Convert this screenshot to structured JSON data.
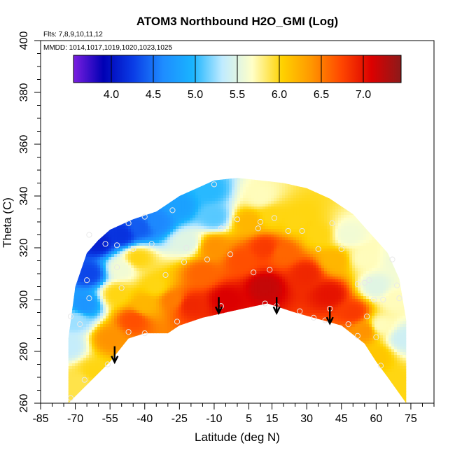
{
  "chart_data": {
    "type": "heatmap",
    "title": "ATOM3 Northbound H2O_GMI (Log)",
    "subtitle_flights": "Flts: 7,8,9,10,11,12",
    "subtitle_dates": "MMDD: 1014,1017,1019,1020,1023,1025",
    "xlabel": "Latitude (deg N)",
    "ylabel": "Theta (C)",
    "xlim": [
      -85,
      85
    ],
    "ylim": [
      260,
      400
    ],
    "x_ticks": [
      -85,
      -70,
      -55,
      -40,
      -25,
      -10,
      5,
      15,
      30,
      45,
      60,
      75
    ],
    "y_ticks": [
      260,
      280,
      300,
      320,
      340,
      360,
      380,
      400
    ],
    "colorbar": {
      "range": [
        3.55,
        7.45
      ],
      "ticks": [
        "4.0",
        "4.5",
        "5.0",
        "5.5",
        "6.0",
        "6.5",
        "7.0"
      ],
      "colors": [
        "#7b1fe0",
        "#0000b4",
        "#0a3ce6",
        "#1e8cff",
        "#19b4ff",
        "#c0ebff",
        "#ffffc8",
        "#ffd200",
        "#ff9600",
        "#ff4600",
        "#dc0000",
        "#8c1a1a"
      ]
    },
    "upper_boundary": [
      [
        -73,
        285
      ],
      [
        -70,
        305
      ],
      [
        -65,
        318
      ],
      [
        -60,
        323
      ],
      [
        -55,
        327
      ],
      [
        -45,
        331
      ],
      [
        -35,
        334
      ],
      [
        -25,
        340
      ],
      [
        -15,
        344
      ],
      [
        -10,
        346
      ],
      [
        0,
        347
      ],
      [
        10,
        346
      ],
      [
        20,
        345
      ],
      [
        30,
        343
      ],
      [
        40,
        339
      ],
      [
        50,
        333
      ],
      [
        55,
        328
      ],
      [
        60,
        323
      ],
      [
        65,
        318
      ],
      [
        70,
        308
      ],
      [
        73,
        292
      ]
    ],
    "lower_boundary": [
      [
        -73,
        260
      ],
      [
        -55,
        276
      ],
      [
        -47,
        285
      ],
      [
        -40,
        287
      ],
      [
        -30,
        287
      ],
      [
        -25,
        290
      ],
      [
        -15,
        293
      ],
      [
        0,
        296
      ],
      [
        13,
        298.5
      ],
      [
        25,
        295
      ],
      [
        45,
        290
      ],
      [
        55,
        283
      ],
      [
        60,
        276
      ],
      [
        65,
        270
      ],
      [
        73,
        260
      ]
    ],
    "field_zones": [
      {
        "x": -73,
        "y": 282,
        "r": 10,
        "value": 5.35
      },
      {
        "x": -70,
        "y": 292,
        "r": 10,
        "value": 5.25
      },
      {
        "x": -66,
        "y": 298,
        "r": 10,
        "value": 4.7
      },
      {
        "x": -64,
        "y": 310,
        "r": 10,
        "value": 4.3
      },
      {
        "x": -60,
        "y": 322,
        "r": 10,
        "value": 4.1
      },
      {
        "x": -50,
        "y": 325,
        "r": 10,
        "value": 4.2
      },
      {
        "x": -42,
        "y": 328,
        "r": 10,
        "value": 4.4
      },
      {
        "x": -35,
        "y": 330,
        "r": 10,
        "value": 4.6
      },
      {
        "x": -25,
        "y": 336,
        "r": 10,
        "value": 4.8
      },
      {
        "x": -12,
        "y": 342,
        "r": 10,
        "value": 5.0
      },
      {
        "x": -10,
        "y": 332,
        "r": 10,
        "value": 5.1
      },
      {
        "x": -22,
        "y": 322,
        "r": 10,
        "value": 5.5
      },
      {
        "x": -50,
        "y": 312,
        "r": 10,
        "value": 5.6
      },
      {
        "x": -43,
        "y": 316,
        "r": 10,
        "value": 6.0
      },
      {
        "x": -52,
        "y": 302,
        "r": 10,
        "value": 6.0
      },
      {
        "x": -55,
        "y": 285,
        "r": 10,
        "value": 6.4
      },
      {
        "x": -62,
        "y": 272,
        "r": 10,
        "value": 6.0
      },
      {
        "x": -68,
        "y": 268,
        "r": 10,
        "value": 5.9
      },
      {
        "x": -45,
        "y": 292,
        "r": 10,
        "value": 6.7
      },
      {
        "x": -40,
        "y": 298,
        "r": 10,
        "value": 6.2
      },
      {
        "x": -35,
        "y": 305,
        "r": 10,
        "value": 6.0
      },
      {
        "x": -28,
        "y": 300,
        "r": 10,
        "value": 6.5
      },
      {
        "x": -20,
        "y": 298,
        "r": 10,
        "value": 6.9
      },
      {
        "x": -15,
        "y": 310,
        "r": 10,
        "value": 6.6
      },
      {
        "x": -10,
        "y": 320,
        "r": 10,
        "value": 6.4
      },
      {
        "x": -5,
        "y": 300,
        "r": 10,
        "value": 7.1
      },
      {
        "x": 2,
        "y": 315,
        "r": 10,
        "value": 6.7
      },
      {
        "x": 5,
        "y": 330,
        "r": 10,
        "value": 6.2
      },
      {
        "x": 10,
        "y": 340,
        "r": 10,
        "value": 5.7
      },
      {
        "x": 15,
        "y": 332,
        "r": 10,
        "value": 6.0
      },
      {
        "x": 12,
        "y": 320,
        "r": 10,
        "value": 6.8
      },
      {
        "x": 12,
        "y": 305,
        "r": 10,
        "value": 7.2
      },
      {
        "x": 20,
        "y": 318,
        "r": 10,
        "value": 6.6
      },
      {
        "x": 25,
        "y": 330,
        "r": 10,
        "value": 6.0
      },
      {
        "x": 35,
        "y": 325,
        "r": 10,
        "value": 6.0
      },
      {
        "x": 30,
        "y": 310,
        "r": 10,
        "value": 6.9
      },
      {
        "x": 40,
        "y": 302,
        "r": 10,
        "value": 7.0
      },
      {
        "x": 42,
        "y": 315,
        "r": 10,
        "value": 6.2
      },
      {
        "x": 48,
        "y": 325,
        "r": 10,
        "value": 5.6
      },
      {
        "x": 55,
        "y": 316,
        "r": 10,
        "value": 5.7
      },
      {
        "x": 60,
        "y": 305,
        "r": 10,
        "value": 5.5
      },
      {
        "x": 62,
        "y": 290,
        "r": 10,
        "value": 5.7
      },
      {
        "x": 50,
        "y": 295,
        "r": 10,
        "value": 6.8
      },
      {
        "x": 55,
        "y": 288,
        "r": 10,
        "value": 6.4
      },
      {
        "x": 60,
        "y": 278,
        "r": 10,
        "value": 6.1
      },
      {
        "x": 68,
        "y": 268,
        "r": 10,
        "value": 6.0
      },
      {
        "x": 68,
        "y": 300,
        "r": 10,
        "value": 5.7
      },
      {
        "x": 70,
        "y": 315,
        "r": 10,
        "value": 5.6
      },
      {
        "x": 72,
        "y": 285,
        "r": 10,
        "value": 5.4
      },
      {
        "x": -72,
        "y": 262,
        "r": 10,
        "value": 5.9
      }
    ],
    "obs_points": [
      [
        -72,
        262
      ],
      [
        -66,
        269
      ],
      [
        -56,
        275
      ],
      [
        -47,
        287.5
      ],
      [
        -40,
        287
      ],
      [
        -26,
        291.5
      ],
      [
        -7,
        297.5
      ],
      [
        12,
        298.5
      ],
      [
        17,
        297.5
      ],
      [
        27,
        295.5
      ],
      [
        33,
        293
      ],
      [
        38,
        292
      ],
      [
        40,
        296.5
      ],
      [
        48,
        290.5
      ],
      [
        52,
        286
      ],
      [
        56,
        293.5
      ],
      [
        62,
        274.5
      ],
      [
        60,
        285.5
      ],
      [
        -64,
        300.5
      ],
      [
        -65,
        307.5
      ],
      [
        -72,
        293.5
      ],
      [
        -68,
        290.5
      ],
      [
        -64,
        325
      ],
      [
        -57,
        321.5
      ],
      [
        -52,
        321
      ],
      [
        -52,
        312.5
      ],
      [
        -50,
        304.5
      ],
      [
        -45,
        319.5
      ],
      [
        -47,
        329.5
      ],
      [
        -40,
        332
      ],
      [
        -37,
        321.5
      ],
      [
        -31,
        309.5
      ],
      [
        -28,
        334.5
      ],
      [
        -23,
        314.5
      ],
      [
        -22,
        320
      ],
      [
        -13,
        315.5
      ],
      [
        -10,
        344.5
      ],
      [
        -7,
        327.5
      ],
      [
        -3,
        317.5
      ],
      [
        0,
        331
      ],
      [
        7,
        310.5
      ],
      [
        9,
        327.5
      ],
      [
        10,
        330
      ],
      [
        14,
        311.5
      ],
      [
        16,
        331.5
      ],
      [
        22,
        326.5
      ],
      [
        28,
        326.5
      ],
      [
        35,
        319.5
      ],
      [
        41,
        329.5
      ],
      [
        45,
        319.5
      ],
      [
        52,
        306
      ],
      [
        55,
        306.5
      ],
      [
        57,
        307.5
      ],
      [
        59,
        300
      ],
      [
        63,
        300
      ],
      [
        67,
        315.5
      ],
      [
        69,
        305.5
      ],
      [
        70,
        300.5
      ]
    ],
    "arrows": [
      [
        -53,
        282
      ],
      [
        -8,
        301
      ],
      [
        17,
        301
      ],
      [
        40,
        297
      ]
    ]
  }
}
